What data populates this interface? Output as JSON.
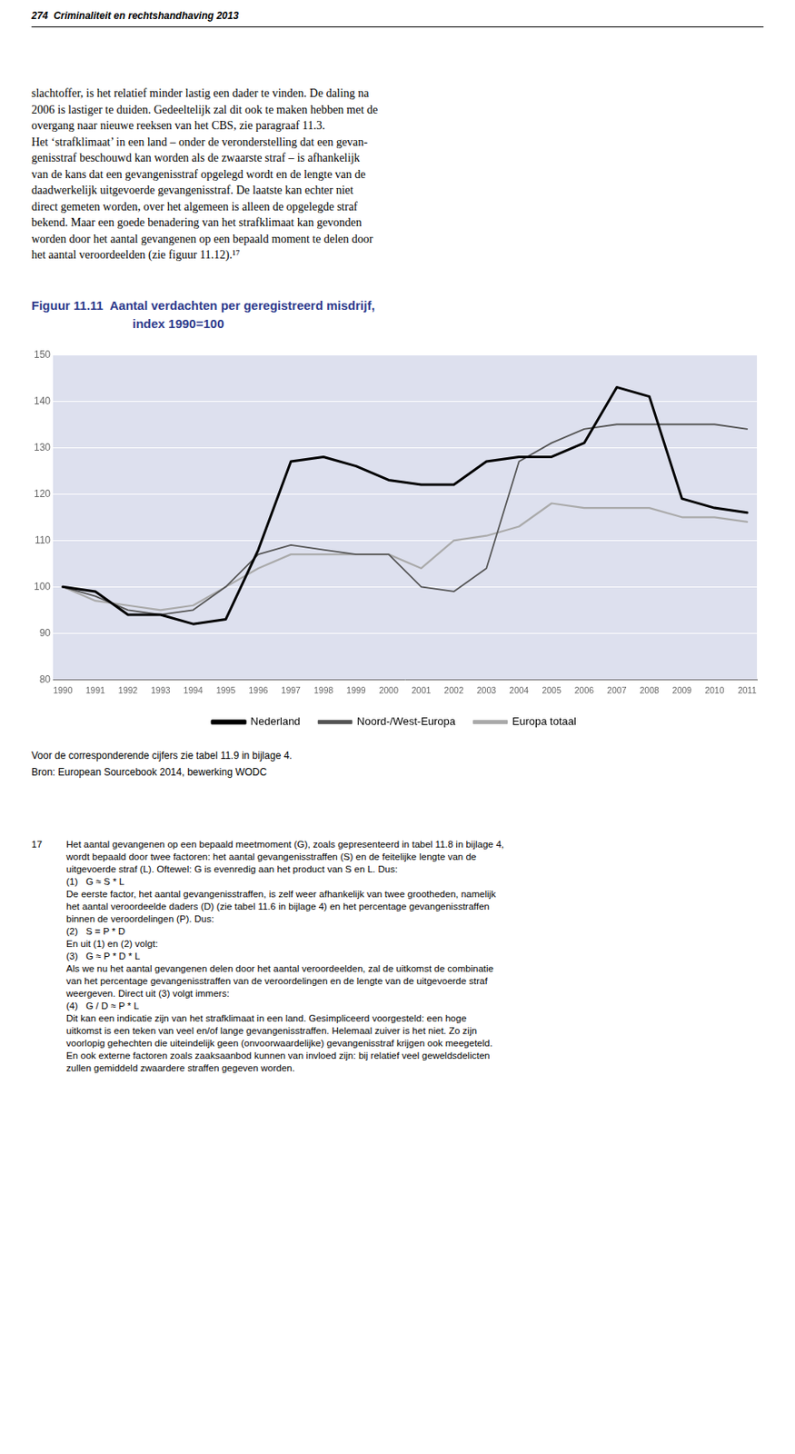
{
  "page_header": "274  Criminaliteit en rechtshandhaving 2013",
  "body_text_lines": [
    "slachtoffer, is het relatief minder lastig een dader te vinden. De daling na",
    "2006 is lastiger te duiden. Gedeeltelijk zal dit ook te maken hebben met de",
    "overgang naar nieuwe reeksen van het CBS, zie paragraaf 11.3.",
    "Het ‘strafklimaat’ in een land – onder de veronderstelling dat een gevan-",
    "genisstraf beschouwd kan worden als de zwaarste straf – is afhankelijk",
    "van de kans dat een gevangenisstraf opgelegd wordt en de lengte van de",
    "daadwerkelijk uitgevoerde gevangenisstraf. De laatste kan echter niet",
    "direct gemeten worden, over het algemeen is alleen de opgelegde straf",
    "bekend. Maar een goede benadering van het strafklimaat kan gevonden",
    "worden door het aantal gevangenen op een bepaald moment te delen door",
    "het aantal veroordeelden (zie figuur 11.12).¹⁷"
  ],
  "chart_data": {
    "type": "line",
    "title": "Figuur 11.11  Aantal verdachten per geregistreerd misdrijf,",
    "subtitle": "index 1990=100",
    "x": [
      1990,
      1991,
      1992,
      1993,
      1994,
      1995,
      1996,
      1997,
      1998,
      1999,
      2000,
      2001,
      2002,
      2003,
      2004,
      2005,
      2006,
      2007,
      2008,
      2009,
      2010,
      2011
    ],
    "series": [
      {
        "name": "Nederland",
        "color": "#000000",
        "values": [
          100,
          99,
          94,
          94,
          92,
          93,
          108,
          127,
          128,
          126,
          123,
          122,
          122,
          127,
          128,
          128,
          131,
          143,
          141,
          119,
          117,
          116
        ]
      },
      {
        "name": "Noord-/West-Europa",
        "color": "#555555",
        "values": [
          100,
          98,
          95,
          94,
          95,
          100,
          107,
          109,
          108,
          107,
          107,
          100,
          99,
          104,
          127,
          131,
          134,
          135,
          135,
          135,
          135,
          134
        ]
      },
      {
        "name": "Europa totaal",
        "color": "#aaaaaa",
        "values": [
          100,
          97,
          96,
          95,
          96,
          100,
          104,
          107,
          107,
          107,
          107,
          104,
          110,
          111,
          113,
          118,
          117,
          117,
          117,
          115,
          115,
          114
        ]
      }
    ],
    "xlim": [
      1989.7,
      2011.3
    ],
    "xticks": [
      1990,
      1991,
      1992,
      1993,
      1994,
      1995,
      1996,
      1997,
      1998,
      1999,
      2000,
      2001,
      2002,
      2003,
      2004,
      2005,
      2006,
      2007,
      2008,
      2009,
      2010,
      2011
    ],
    "ylim": [
      80,
      150
    ],
    "yticks": [
      80,
      90,
      100,
      110,
      120,
      130,
      140,
      150
    ],
    "grid": "y",
    "legend": "bottom"
  },
  "caption_lines": [
    "Voor de corresponderende cijfers zie tabel 11.9 in bijlage 4.",
    "Bron: European Sourcebook 2014, bewerking WODC"
  ],
  "footnote": {
    "number": "17",
    "lines": [
      "Het aantal gevangenen op een bepaald meetmoment (G), zoals gepresenteerd in tabel 11.8 in bijlage 4,",
      "wordt bepaald door twee factoren: het aantal gevangenisstraffen (S) en de feitelijke lengte van de",
      "uitgevoerde straf (L). Oftewel: G is evenredig aan het product van S en L. Dus:",
      "(1)   G ≈ S * L",
      "De eerste factor, het aantal gevangenisstraffen, is zelf weer afhankelijk van twee grootheden, namelijk",
      "het aantal veroordeelde daders (D) (zie tabel 11.6 in bijlage 4) en het percentage gevangenisstraffen",
      "binnen de veroordelingen (P). Dus:",
      "(2)   S = P * D",
      "En uit (1) en (2) volgt:",
      "(3)   G ≈ P * D * L",
      "Als we nu het aantal gevangenen delen door het aantal veroordeelden, zal de uitkomst de combinatie",
      "van het percentage gevangenisstraffen van de veroordelingen en de lengte van de uitgevoerde straf",
      "weergeven. Direct uit (3) volgt immers:",
      "(4)   G / D ≈ P * L",
      "Dit kan een indicatie zijn van het strafklimaat in een land. Gesimpliceerd voorgesteld: een hoge",
      "uitkomst is een teken van veel en/of lange gevangenisstraffen. Helemaal zuiver is het niet. Zo zijn",
      "voorlopig gehechten die uiteindelijk geen (onvoorwaardelijke) gevangenisstraf krijgen ook meegeteld.",
      "En ook externe factoren zoals zaaksaanbod kunnen van invloed zijn: bij relatief veel geweldsdelicten",
      "zullen gemiddeld zwaardere straffen gegeven worden."
    ]
  }
}
